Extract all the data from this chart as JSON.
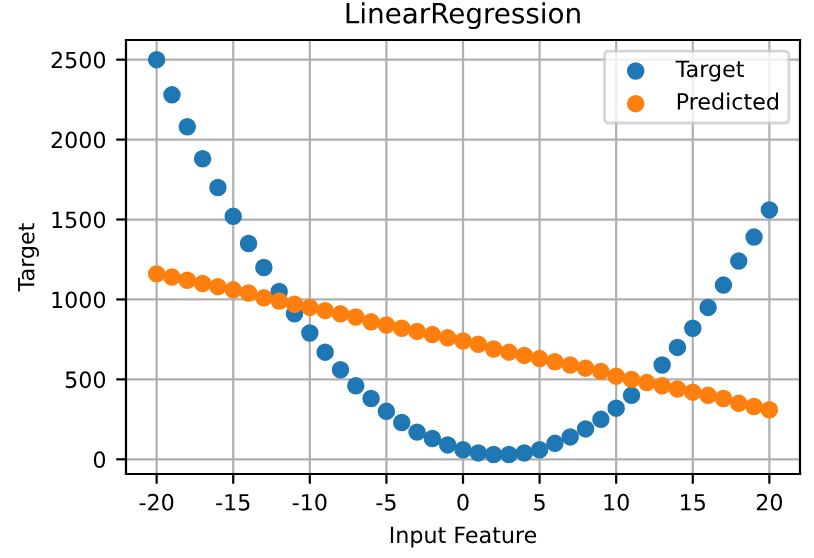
{
  "chart_data": {
    "type": "scatter",
    "title": "LinearRegression",
    "xlabel": "Input Feature",
    "ylabel": "Target",
    "x": [
      -20,
      -19,
      -18,
      -17,
      -16,
      -15,
      -14,
      -13,
      -12,
      -11,
      -10,
      -9,
      -8,
      -7,
      -6,
      -5,
      -4,
      -3,
      -2,
      -1,
      0,
      1,
      2,
      3,
      4,
      5,
      6,
      7,
      8,
      9,
      10,
      11,
      12,
      13,
      14,
      15,
      16,
      17,
      18,
      19,
      20
    ],
    "series": [
      {
        "name": "Target",
        "color": "#1f77b4",
        "values": [
          2500,
          2280,
          2080,
          1880,
          1700,
          1520,
          1350,
          1200,
          1050,
          910,
          790,
          670,
          560,
          460,
          380,
          300,
          230,
          170,
          130,
          90,
          60,
          40,
          30,
          30,
          40,
          60,
          100,
          140,
          190,
          250,
          320,
          400,
          null,
          590,
          700,
          820,
          950,
          1090,
          1240,
          1390,
          1560
        ]
      },
      {
        "name": "Predicted",
        "color": "#ff7f0e",
        "values": [
          1160,
          1140,
          1120,
          1100,
          1080,
          1060,
          1040,
          1010,
          990,
          970,
          950,
          930,
          910,
          890,
          860,
          840,
          820,
          800,
          780,
          760,
          740,
          720,
          690,
          670,
          650,
          630,
          610,
          590,
          570,
          550,
          520,
          500,
          480,
          460,
          440,
          420,
          400,
          380,
          350,
          330,
          310
        ]
      }
    ],
    "xlim": [
      -22,
      22
    ],
    "ylim": [
      -92,
      2623
    ],
    "xticks": [
      -20,
      -15,
      -10,
      -5,
      0,
      5,
      10,
      15,
      20
    ],
    "yticks": [
      0,
      500,
      1000,
      1500,
      2000,
      2500
    ],
    "grid": true,
    "legend": "top right",
    "marker": "circle"
  }
}
